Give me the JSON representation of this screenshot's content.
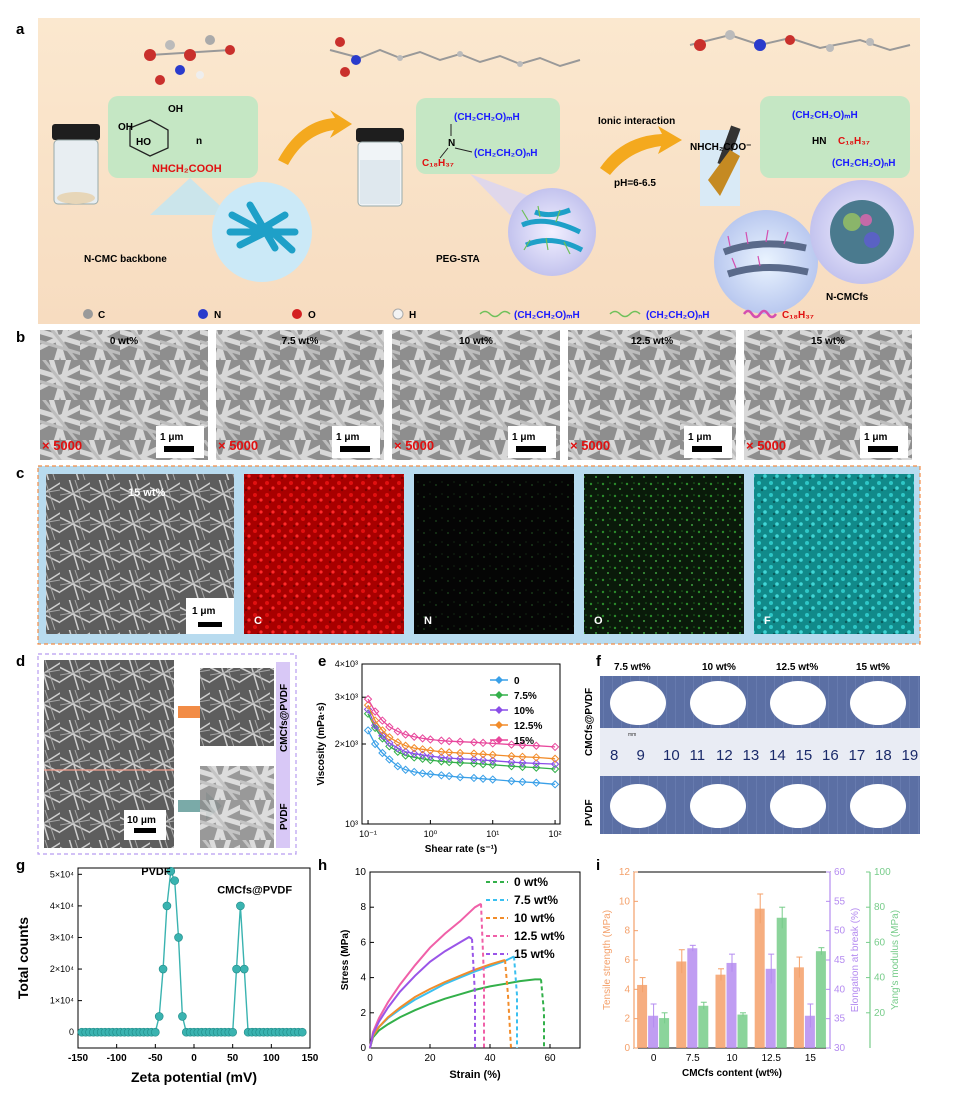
{
  "colors": {
    "orange": "#f28c46",
    "purple": "#b07ae8",
    "green": "#5fbf6f",
    "teal": "#2aa6a6",
    "blue": "#1a1aff",
    "red": "#e01010"
  },
  "panel_a": {
    "label": "a",
    "backbone_label": "N-CMC backbone",
    "peg_label": "PEG-STA",
    "product_label": "N-CMCfs",
    "ionic_label": "Ionic interaction",
    "ph_label": "pH=6-6.5",
    "cmc_formula": "NHCH₂COOH",
    "cmc_oh1": "OH",
    "cmc_oh2": "OH",
    "cmc_ho": "HO",
    "cmc_n": "n",
    "peg_top": "(CH₂CH₂O)ₘH",
    "peg_bottom": "(CH₂CH₂O)ₙH",
    "peg_alkyl": "C₁₈H₃₇",
    "peg_n": "N",
    "prod_left": "NHCH₂COO⁻",
    "prod_hn": "HN",
    "prod_top": "(CH₂CH₂O)ₘH",
    "prod_alkyl": "C₁₈H₃₇",
    "prod_bottom": "(CH₂CH₂O)ₙH",
    "legend": [
      {
        "sym": "C"
      },
      {
        "sym": "N"
      },
      {
        "sym": "O"
      },
      {
        "sym": "H"
      }
    ],
    "legend_m": "(CH₂CH₂O)ₘH",
    "legend_n": "(CH₂CH₂O)ₙH",
    "legend_c": "C₁₈H₃₇"
  },
  "panel_b": {
    "label": "b",
    "images": [
      {
        "title": "0 wt%",
        "mag": "× 5000",
        "scale": "1 μm"
      },
      {
        "title": "7.5 wt%",
        "mag": "× 5000",
        "scale": "1 μm"
      },
      {
        "title": "10 wt%",
        "mag": "× 5000",
        "scale": "1 μm"
      },
      {
        "title": "12.5 wt%",
        "mag": "× 5000",
        "scale": "1 μm"
      },
      {
        "title": "15 wt%",
        "mag": "× 5000",
        "scale": "1 μm"
      }
    ]
  },
  "panel_c": {
    "label": "c",
    "title": "15 wt%",
    "scale": "1 μm",
    "maps": [
      "C",
      "N",
      "O",
      "F"
    ]
  },
  "panel_d": {
    "label": "d",
    "top_label": "CMCfs@PVDF",
    "bottom_label": "PVDF",
    "scale": "10 μm"
  },
  "panel_f": {
    "label": "f",
    "columns": [
      "7.5 wt%",
      "10 wt%",
      "12.5 wt%",
      "15 wt%"
    ],
    "row_top": "CMCfs@PVDF",
    "row_bottom": "PVDF",
    "ruler": [
      "8",
      "9",
      "10",
      "11",
      "12",
      "13",
      "14",
      "15",
      "16",
      "17",
      "18",
      "19"
    ],
    "ruler_unit": "mm"
  },
  "chart_data": [
    {
      "panel": "e",
      "type": "line",
      "xlabel": "Shear rate (s⁻¹)",
      "ylabel": "Viscosity (mPa·s)",
      "xscale": "log",
      "yscale": "log",
      "xlim": [
        0.08,
        120
      ],
      "ylim": [
        1000,
        4000
      ],
      "x_ticks": [
        "10⁻¹",
        "10⁰",
        "10¹",
        "10²"
      ],
      "y_ticks": [
        "10³",
        "2×10³",
        "3×10³",
        "4×10³"
      ],
      "legend_position": "top-right",
      "x": [
        0.1,
        0.13,
        0.17,
        0.22,
        0.3,
        0.4,
        0.55,
        0.75,
        1,
        1.5,
        2,
        3,
        5,
        7,
        10,
        20,
        30,
        50,
        100
      ],
      "series": [
        {
          "name": "0",
          "color": "#3aa0e8",
          "marker": "diamond",
          "values": [
            2250,
            2000,
            1850,
            1750,
            1650,
            1600,
            1570,
            1550,
            1540,
            1525,
            1515,
            1500,
            1490,
            1480,
            1470,
            1450,
            1440,
            1430,
            1410
          ]
        },
        {
          "name": "7.5%",
          "color": "#33b04a",
          "marker": "diamond",
          "values": [
            2600,
            2300,
            2100,
            1960,
            1870,
            1810,
            1780,
            1760,
            1740,
            1720,
            1710,
            1700,
            1690,
            1680,
            1670,
            1650,
            1640,
            1630,
            1610
          ]
        },
        {
          "name": "10%",
          "color": "#8a4ee8",
          "marker": "triangle",
          "values": [
            2700,
            2350,
            2150,
            2020,
            1930,
            1870,
            1840,
            1820,
            1800,
            1780,
            1770,
            1760,
            1750,
            1740,
            1730,
            1710,
            1700,
            1690,
            1680
          ]
        },
        {
          "name": "12.5%",
          "color": "#f28c2a",
          "marker": "triangle-left",
          "values": [
            2800,
            2450,
            2250,
            2120,
            2030,
            1970,
            1930,
            1910,
            1890,
            1870,
            1860,
            1850,
            1840,
            1830,
            1820,
            1800,
            1790,
            1780,
            1760
          ]
        },
        {
          "name": "15%",
          "color": "#e8479c",
          "marker": "triangle",
          "values": [
            2950,
            2650,
            2450,
            2320,
            2230,
            2170,
            2130,
            2100,
            2080,
            2060,
            2050,
            2040,
            2030,
            2020,
            2010,
            1990,
            1980,
            1970,
            1950
          ]
        }
      ]
    },
    {
      "panel": "g",
      "type": "scatter",
      "xlabel": "Zeta potential (mV)",
      "ylabel": "Total counts",
      "xlim": [
        -150,
        150
      ],
      "ylim": [
        -5000,
        52000
      ],
      "x_ticks": [
        -150,
        -100,
        -50,
        0,
        50,
        100,
        150
      ],
      "y_ticks": [
        0,
        10000,
        20000,
        30000,
        40000,
        50000
      ],
      "y_tick_labels": [
        "0",
        "1×10⁴",
        "2×10⁴",
        "3×10⁴",
        "4×10⁴",
        "5×10⁴"
      ],
      "annotations": [
        "PVDF",
        "CMCfs@PVDF"
      ],
      "color": "#3ab3b0",
      "x": [
        -145,
        -140,
        -135,
        -130,
        -125,
        -120,
        -115,
        -110,
        -105,
        -100,
        -95,
        -90,
        -85,
        -80,
        -75,
        -70,
        -65,
        -60,
        -55,
        -50,
        -45,
        -40,
        -35,
        -30,
        -25,
        -20,
        -15,
        -10,
        -5,
        0,
        5,
        10,
        15,
        20,
        25,
        30,
        35,
        40,
        45,
        50,
        55,
        60,
        65,
        70,
        75,
        80,
        85,
        90,
        95,
        100,
        105,
        110,
        115,
        120,
        125,
        130,
        135,
        140
      ],
      "y": [
        0,
        0,
        0,
        0,
        0,
        0,
        0,
        0,
        0,
        0,
        0,
        0,
        0,
        0,
        0,
        0,
        0,
        0,
        0,
        0,
        5000,
        20000,
        40000,
        51000,
        48000,
        30000,
        5000,
        0,
        0,
        0,
        0,
        0,
        0,
        0,
        0,
        0,
        0,
        0,
        0,
        0,
        20000,
        40000,
        20000,
        0,
        0,
        0,
        0,
        0,
        0,
        0,
        0,
        0,
        0,
        0,
        0,
        0,
        0,
        0
      ]
    },
    {
      "panel": "h",
      "type": "line",
      "xlabel": "Strain (%)",
      "ylabel": "Stress (MPa)",
      "xlim": [
        0,
        70
      ],
      "ylim": [
        0,
        10
      ],
      "x_ticks": [
        0,
        20,
        40,
        60
      ],
      "y_ticks": [
        0,
        2,
        4,
        6,
        8,
        10
      ],
      "legend_position": "top-right",
      "series": [
        {
          "name": "0 wt%",
          "color": "#33b04a",
          "x": [
            0,
            1,
            3,
            6,
            10,
            15,
            20,
            25,
            30,
            35,
            40,
            45,
            50,
            55,
            57,
            58,
            58
          ],
          "values": [
            0,
            0.6,
            1.0,
            1.35,
            1.75,
            2.15,
            2.5,
            2.8,
            3.05,
            3.3,
            3.5,
            3.65,
            3.8,
            3.9,
            3.9,
            2,
            0
          ]
        },
        {
          "name": "7.5 wt%",
          "color": "#3ac0f0",
          "x": [
            0,
            1,
            3,
            6,
            10,
            15,
            20,
            25,
            30,
            35,
            40,
            45,
            48,
            49,
            49
          ],
          "values": [
            0,
            0.7,
            1.2,
            1.7,
            2.2,
            2.75,
            3.2,
            3.65,
            4.0,
            4.35,
            4.65,
            4.95,
            5.2,
            3,
            0
          ]
        },
        {
          "name": "10 wt%",
          "color": "#f28c2a",
          "x": [
            0,
            1,
            3,
            6,
            10,
            15,
            20,
            25,
            30,
            35,
            40,
            45,
            46,
            47
          ],
          "values": [
            0,
            0.7,
            1.2,
            1.75,
            2.3,
            2.9,
            3.35,
            3.75,
            4.1,
            4.45,
            4.75,
            5.0,
            3,
            0
          ]
        },
        {
          "name": "12.5 wt%",
          "color": "#f060a8",
          "x": [
            0,
            1,
            3,
            6,
            10,
            15,
            20,
            25,
            30,
            35,
            37,
            38,
            38
          ],
          "values": [
            0,
            0.9,
            1.7,
            2.6,
            3.6,
            4.7,
            5.7,
            6.5,
            7.2,
            8.0,
            8.2,
            4,
            0
          ]
        },
        {
          "name": "15 wt%",
          "color": "#9a55e8",
          "x": [
            0,
            1,
            3,
            6,
            10,
            15,
            20,
            25,
            30,
            33,
            34,
            35,
            35
          ],
          "values": [
            0,
            0.8,
            1.5,
            2.3,
            3.2,
            4.1,
            4.9,
            5.5,
            6.0,
            6.3,
            6.2,
            3,
            0
          ]
        }
      ]
    },
    {
      "panel": "i",
      "type": "bar",
      "xlabel": "CMCfs content (wt%)",
      "categories": [
        "0",
        "7.5",
        "10",
        "12.5",
        "15"
      ],
      "series": [
        {
          "name": "Tensile strength (MPa)",
          "color": "#f4a06a",
          "axis_range": [
            0,
            12
          ],
          "ticks": [
            0,
            2,
            4,
            6,
            8,
            10,
            12
          ],
          "values": [
            4.3,
            5.9,
            5.0,
            9.5,
            5.5
          ],
          "errors": [
            0.5,
            0.8,
            0.4,
            1.0,
            0.7
          ]
        },
        {
          "name": "Elongation at break (%)",
          "color": "#b58cf0",
          "axis_range": [
            30,
            60
          ],
          "ticks": [
            30,
            35,
            40,
            45,
            50,
            55,
            60
          ],
          "values": [
            35.5,
            47,
            44.5,
            43.5,
            35.5
          ],
          "errors": [
            2,
            0.5,
            1.5,
            2.5,
            2
          ]
        },
        {
          "name": "Yang's modulus (MPa)",
          "color": "#77cc8a",
          "axis_range": [
            0,
            100
          ],
          "ticks": [
            20,
            40,
            60,
            80,
            100
          ],
          "values": [
            17,
            24,
            19,
            74,
            55
          ],
          "errors": [
            3,
            2,
            1,
            6,
            2
          ]
        }
      ]
    }
  ]
}
